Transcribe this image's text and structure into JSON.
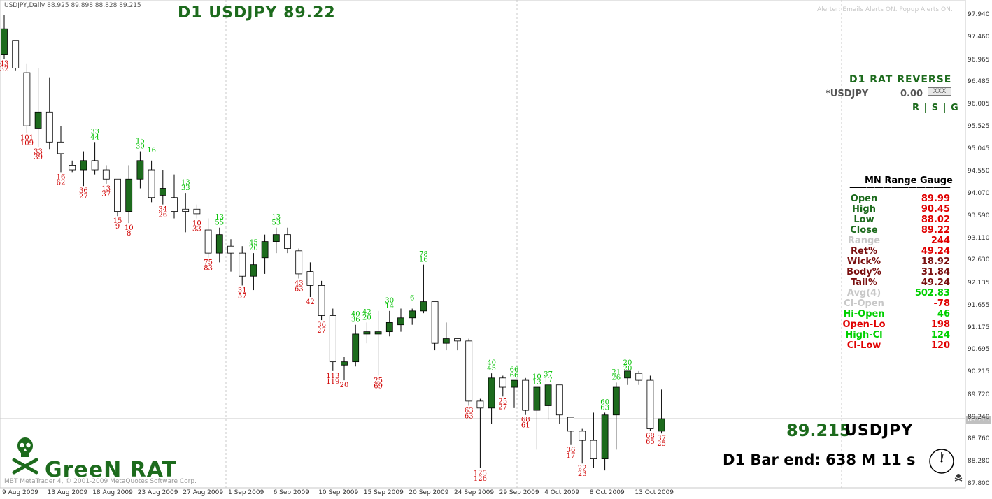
{
  "window": {
    "header": "USDJPY,Daily  88.925 89.898 88.828 89.215"
  },
  "title": "D1 USDJPY 89.22",
  "alerts_text": "Alerter:  Emails Alerts ON.  Popup Alerts ON.",
  "rat_panel": {
    "title": "D1 RAT REVERSE",
    "symbol": "*USDJPY",
    "value": "0.00",
    "box": "XXX",
    "rsg": "R | S | G"
  },
  "gauge": {
    "title": "MN Range Gauge",
    "rows": [
      {
        "label": "Open",
        "value": "89.99",
        "label_color": "#1d6b1d",
        "value_color": "#e00000"
      },
      {
        "label": "High",
        "value": "90.45",
        "label_color": "#1d6b1d",
        "value_color": "#e00000"
      },
      {
        "label": "Low",
        "value": "88.02",
        "label_color": "#1d6b1d",
        "value_color": "#e00000"
      },
      {
        "label": "Close",
        "value": "89.22",
        "label_color": "#1d6b1d",
        "value_color": "#e00000"
      },
      {
        "label": "Range",
        "value": "244",
        "label_color": "#c8c8c8",
        "value_color": "#e00000"
      },
      {
        "label": "Ret%",
        "value": "49.24",
        "label_color": "#7a1010",
        "value_color": "#e00000"
      },
      {
        "label": "Wick%",
        "value": "18.92",
        "label_color": "#7a1010",
        "value_color": "#7a1010"
      },
      {
        "label": "Body%",
        "value": "31.84",
        "label_color": "#7a1010",
        "value_color": "#7a1010"
      },
      {
        "label": "Tail%",
        "value": "49.24",
        "label_color": "#7a1010",
        "value_color": "#7a1010"
      },
      {
        "label": "Avg(4)",
        "value": "502.83",
        "label_color": "#c8c8c8",
        "value_color": "#00d000"
      },
      {
        "label": "Cl-Open",
        "value": "-78",
        "label_color": "#c8c8c8",
        "value_color": "#e00000"
      },
      {
        "label": "Hi-Open",
        "value": "46",
        "label_color": "#00d000",
        "value_color": "#00d000"
      },
      {
        "label": "Open-Lo",
        "value": "198",
        "label_color": "#e00000",
        "value_color": "#e00000"
      },
      {
        "label": "High-Cl",
        "value": "124",
        "label_color": "#00d000",
        "value_color": "#00d000"
      },
      {
        "label": "Cl-Low",
        "value": "120",
        "label_color": "#e00000",
        "value_color": "#e00000"
      }
    ]
  },
  "price_readout": "89.215",
  "symbol_readout": "USDJPY",
  "bar_end": "D1 Bar end: 638 M 11 s",
  "brand": "GreeN RAT",
  "copyright": "MBT MetaTrader 4, © 2001-2009 MetaQuotes Software Corp.",
  "current_price_tag": "89.215",
  "icons": {
    "skull": "skull-crossbones-icon",
    "clock": "clock-icon",
    "small_skull": "small-skull-icon"
  },
  "colors": {
    "bull_body": "#1d6b1d",
    "bear_body": "#ffffff",
    "wick": "#000000",
    "green_label": "#00c000",
    "red_label": "#d00000",
    "grid": "#c8c8c8"
  },
  "chart_data": {
    "type": "candlestick",
    "symbol": "USDJPY",
    "timeframe": "D1",
    "y_ticks": [
      "97.940",
      "97.460",
      "96.965",
      "96.485",
      "96.005",
      "95.525",
      "95.045",
      "94.550",
      "94.070",
      "93.590",
      "93.110",
      "92.630",
      "92.135",
      "91.655",
      "91.175",
      "90.695",
      "90.215",
      "89.720",
      "89.240",
      "88.760",
      "88.280",
      "87.800"
    ],
    "ylim": [
      87.8,
      97.94
    ],
    "x_ticks": [
      "9 Aug 2009",
      "13 Aug 2009",
      "18 Aug 2009",
      "23 Aug 2009",
      "27 Aug 2009",
      "1 Sep 2009",
      "6 Sep 2009",
      "10 Sep 2009",
      "15 Sep 2009",
      "20 Sep 2009",
      "24 Sep 2009",
      "29 Sep 2009",
      "4 Oct 2009",
      "8 Oct 2009",
      "13 Oct 2009"
    ],
    "candles": [
      {
        "o": 97.1,
        "h": 97.95,
        "l": 97.0,
        "c": 97.65
      },
      {
        "o": 97.4,
        "h": 97.4,
        "l": 96.75,
        "c": 96.8
      },
      {
        "o": 96.7,
        "h": 96.9,
        "l": 95.4,
        "c": 95.55
      },
      {
        "o": 95.5,
        "h": 96.8,
        "l": 95.1,
        "c": 95.85
      },
      {
        "o": 95.85,
        "h": 96.6,
        "l": 95.05,
        "c": 95.2
      },
      {
        "o": 95.2,
        "h": 95.55,
        "l": 94.55,
        "c": 94.95
      },
      {
        "o": 94.7,
        "h": 94.8,
        "l": 94.55,
        "c": 94.6
      },
      {
        "o": 94.6,
        "h": 95.0,
        "l": 94.25,
        "c": 94.8
      },
      {
        "o": 94.8,
        "h": 95.2,
        "l": 94.5,
        "c": 94.6
      },
      {
        "o": 94.6,
        "h": 94.7,
        "l": 94.3,
        "c": 94.4
      },
      {
        "o": 94.4,
        "h": 94.4,
        "l": 93.6,
        "c": 93.7
      },
      {
        "o": 93.7,
        "h": 94.7,
        "l": 93.45,
        "c": 94.4
      },
      {
        "o": 94.4,
        "h": 95.0,
        "l": 94.2,
        "c": 94.8
      },
      {
        "o": 94.6,
        "h": 94.8,
        "l": 93.9,
        "c": 94.0
      },
      {
        "o": 94.05,
        "h": 94.6,
        "l": 93.85,
        "c": 94.2
      },
      {
        "o": 94.0,
        "h": 94.5,
        "l": 93.55,
        "c": 93.7
      },
      {
        "o": 93.75,
        "h": 94.1,
        "l": 93.25,
        "c": 93.7
      },
      {
        "o": 93.75,
        "h": 93.85,
        "l": 93.55,
        "c": 93.65
      },
      {
        "o": 93.3,
        "h": 93.55,
        "l": 92.7,
        "c": 92.8
      },
      {
        "o": 92.8,
        "h": 93.35,
        "l": 92.6,
        "c": 93.2
      },
      {
        "o": 92.95,
        "h": 93.1,
        "l": 92.4,
        "c": 92.8
      },
      {
        "o": 92.8,
        "h": 92.95,
        "l": 92.1,
        "c": 92.3
      },
      {
        "o": 92.3,
        "h": 92.8,
        "l": 92.0,
        "c": 92.55
      },
      {
        "o": 92.7,
        "h": 93.2,
        "l": 92.35,
        "c": 93.05
      },
      {
        "o": 93.05,
        "h": 93.35,
        "l": 92.8,
        "c": 93.2
      },
      {
        "o": 93.2,
        "h": 93.35,
        "l": 92.8,
        "c": 92.9
      },
      {
        "o": 92.85,
        "h": 92.9,
        "l": 92.25,
        "c": 92.35
      },
      {
        "o": 92.4,
        "h": 92.6,
        "l": 91.85,
        "c": 92.1
      },
      {
        "o": 92.1,
        "h": 92.2,
        "l": 91.35,
        "c": 91.45
      },
      {
        "o": 91.45,
        "h": 91.6,
        "l": 90.25,
        "c": 90.45
      },
      {
        "o": 90.38,
        "h": 90.55,
        "l": 90.05,
        "c": 90.45
      },
      {
        "o": 90.45,
        "h": 91.25,
        "l": 90.35,
        "c": 91.05
      },
      {
        "o": 91.05,
        "h": 91.3,
        "l": 90.85,
        "c": 91.1
      },
      {
        "o": 91.05,
        "h": 91.55,
        "l": 90.15,
        "c": 91.1
      },
      {
        "o": 91.1,
        "h": 91.55,
        "l": 91.0,
        "c": 91.3
      },
      {
        "o": 91.25,
        "h": 91.6,
        "l": 91.1,
        "c": 91.4
      },
      {
        "o": 91.4,
        "h": 91.6,
        "l": 91.25,
        "c": 91.55
      },
      {
        "o": 91.55,
        "h": 92.55,
        "l": 91.5,
        "c": 91.75
      },
      {
        "o": 91.75,
        "h": 91.75,
        "l": 90.7,
        "c": 90.85
      },
      {
        "o": 90.85,
        "h": 91.3,
        "l": 90.7,
        "c": 90.95
      },
      {
        "o": 90.95,
        "h": 90.95,
        "l": 90.7,
        "c": 90.9
      },
      {
        "o": 90.9,
        "h": 90.95,
        "l": 89.5,
        "c": 89.6
      },
      {
        "o": 89.6,
        "h": 89.65,
        "l": 88.15,
        "c": 89.45
      },
      {
        "o": 89.45,
        "h": 90.2,
        "l": 89.1,
        "c": 90.1
      },
      {
        "o": 90.1,
        "h": 90.15,
        "l": 89.7,
        "c": 89.9
      },
      {
        "o": 89.9,
        "h": 90.05,
        "l": 89.45,
        "c": 90.05
      },
      {
        "o": 90.05,
        "h": 90.1,
        "l": 89.3,
        "c": 89.4
      },
      {
        "o": 89.4,
        "h": 89.9,
        "l": 88.55,
        "c": 89.9
      },
      {
        "o": 89.5,
        "h": 89.95,
        "l": 89.2,
        "c": 89.95
      },
      {
        "o": 89.95,
        "h": 89.95,
        "l": 89.1,
        "c": 89.3
      },
      {
        "o": 89.25,
        "h": 89.25,
        "l": 88.65,
        "c": 88.95
      },
      {
        "o": 88.95,
        "h": 89.0,
        "l": 88.25,
        "c": 88.75
      },
      {
        "o": 88.75,
        "h": 89.35,
        "l": 88.15,
        "c": 88.35
      },
      {
        "o": 88.35,
        "h": 89.35,
        "l": 88.1,
        "c": 89.3
      },
      {
        "o": 89.3,
        "h": 90.0,
        "l": 88.55,
        "c": 89.9
      },
      {
        "o": 90.1,
        "h": 90.2,
        "l": 89.95,
        "c": 90.25
      },
      {
        "o": 90.2,
        "h": 90.25,
        "l": 89.95,
        "c": 90.05
      },
      {
        "o": 90.05,
        "h": 90.15,
        "l": 88.95,
        "c": 89.0
      },
      {
        "o": 88.95,
        "h": 89.85,
        "l": 88.9,
        "c": 89.22
      }
    ],
    "labels": [
      {
        "i": 0,
        "text": "43",
        "color": "red",
        "pos": "below"
      },
      {
        "i": 0,
        "text": "32",
        "color": "red",
        "pos": "below2"
      },
      {
        "i": 2,
        "text": "101",
        "color": "red",
        "pos": "below"
      },
      {
        "i": 2,
        "text": "109",
        "color": "red",
        "pos": "below2"
      },
      {
        "i": 3,
        "text": "33",
        "color": "red",
        "pos": "below"
      },
      {
        "i": 3,
        "text": "39",
        "color": "red",
        "pos": "below2"
      },
      {
        "i": 5,
        "text": "16",
        "color": "red",
        "pos": "below"
      },
      {
        "i": 5,
        "text": "62",
        "color": "red",
        "pos": "below2"
      },
      {
        "i": 7,
        "text": "36",
        "color": "red",
        "pos": "below"
      },
      {
        "i": 7,
        "text": "27",
        "color": "red",
        "pos": "below2"
      },
      {
        "i": 8,
        "text": "33",
        "color": "green",
        "pos": "above"
      },
      {
        "i": 8,
        "text": "44",
        "color": "green",
        "pos": "above2"
      },
      {
        "i": 9,
        "text": "13",
        "color": "red",
        "pos": "below"
      },
      {
        "i": 9,
        "text": "37",
        "color": "red",
        "pos": "below2"
      },
      {
        "i": 10,
        "text": "15",
        "color": "red",
        "pos": "below"
      },
      {
        "i": 10,
        "text": "9",
        "color": "red",
        "pos": "below2"
      },
      {
        "i": 11,
        "text": "10",
        "color": "red",
        "pos": "below"
      },
      {
        "i": 11,
        "text": "8",
        "color": "red",
        "pos": "below2"
      },
      {
        "i": 12,
        "text": "15",
        "color": "green",
        "pos": "above"
      },
      {
        "i": 12,
        "text": "30",
        "color": "green",
        "pos": "above2"
      },
      {
        "i": 13,
        "text": "16",
        "color": "green",
        "pos": "above"
      },
      {
        "i": 14,
        "text": "34",
        "color": "red",
        "pos": "below"
      },
      {
        "i": 14,
        "text": "26",
        "color": "red",
        "pos": "below2"
      },
      {
        "i": 16,
        "text": "13",
        "color": "green",
        "pos": "above"
      },
      {
        "i": 16,
        "text": "33",
        "color": "green",
        "pos": "above2"
      },
      {
        "i": 17,
        "text": "10",
        "color": "red",
        "pos": "below"
      },
      {
        "i": 17,
        "text": "33",
        "color": "red",
        "pos": "below2"
      },
      {
        "i": 18,
        "text": "75",
        "color": "red",
        "pos": "below"
      },
      {
        "i": 18,
        "text": "83",
        "color": "red",
        "pos": "below2"
      },
      {
        "i": 19,
        "text": "13",
        "color": "green",
        "pos": "above"
      },
      {
        "i": 19,
        "text": "55",
        "color": "green",
        "pos": "above2"
      },
      {
        "i": 21,
        "text": "31",
        "color": "red",
        "pos": "below"
      },
      {
        "i": 21,
        "text": "57",
        "color": "red",
        "pos": "below2"
      },
      {
        "i": 22,
        "text": "45",
        "color": "green",
        "pos": "above"
      },
      {
        "i": 22,
        "text": "20",
        "color": "green",
        "pos": "above2"
      },
      {
        "i": 24,
        "text": "13",
        "color": "green",
        "pos": "above"
      },
      {
        "i": 24,
        "text": "53",
        "color": "green",
        "pos": "above2"
      },
      {
        "i": 26,
        "text": "43",
        "color": "red",
        "pos": "below"
      },
      {
        "i": 26,
        "text": "63",
        "color": "red",
        "pos": "below2"
      },
      {
        "i": 27,
        "text": "42",
        "color": "red",
        "pos": "below"
      },
      {
        "i": 28,
        "text": "36",
        "color": "red",
        "pos": "below"
      },
      {
        "i": 28,
        "text": "27",
        "color": "red",
        "pos": "below2"
      },
      {
        "i": 29,
        "text": "113",
        "color": "red",
        "pos": "below"
      },
      {
        "i": 29,
        "text": "119",
        "color": "red",
        "pos": "below2"
      },
      {
        "i": 30,
        "text": "20",
        "color": "red",
        "pos": "below"
      },
      {
        "i": 31,
        "text": "40",
        "color": "green",
        "pos": "above"
      },
      {
        "i": 31,
        "text": "36",
        "color": "green",
        "pos": "above2"
      },
      {
        "i": 32,
        "text": "42",
        "color": "green",
        "pos": "above"
      },
      {
        "i": 32,
        "text": "20",
        "color": "green",
        "pos": "above2"
      },
      {
        "i": 33,
        "text": "25",
        "color": "red",
        "pos": "below"
      },
      {
        "i": 33,
        "text": "69",
        "color": "red",
        "pos": "below2"
      },
      {
        "i": 34,
        "text": "30",
        "color": "green",
        "pos": "above"
      },
      {
        "i": 34,
        "text": "14",
        "color": "green",
        "pos": "above2"
      },
      {
        "i": 36,
        "text": "6",
        "color": "green",
        "pos": "above"
      },
      {
        "i": 37,
        "text": "78",
        "color": "green",
        "pos": "above"
      },
      {
        "i": 37,
        "text": "16",
        "color": "green",
        "pos": "above2"
      },
      {
        "i": 41,
        "text": "63",
        "color": "red",
        "pos": "below"
      },
      {
        "i": 41,
        "text": "63",
        "color": "red",
        "pos": "below2"
      },
      {
        "i": 42,
        "text": "125",
        "color": "red",
        "pos": "below"
      },
      {
        "i": 42,
        "text": "126",
        "color": "red",
        "pos": "below2"
      },
      {
        "i": 43,
        "text": "40",
        "color": "green",
        "pos": "above"
      },
      {
        "i": 43,
        "text": "45",
        "color": "green",
        "pos": "above2"
      },
      {
        "i": 44,
        "text": "25",
        "color": "red",
        "pos": "below"
      },
      {
        "i": 44,
        "text": "27",
        "color": "red",
        "pos": "below2"
      },
      {
        "i": 45,
        "text": "66",
        "color": "green",
        "pos": "above"
      },
      {
        "i": 45,
        "text": "66",
        "color": "green",
        "pos": "above2"
      },
      {
        "i": 46,
        "text": "68",
        "color": "red",
        "pos": "below"
      },
      {
        "i": 46,
        "text": "61",
        "color": "red",
        "pos": "below2"
      },
      {
        "i": 47,
        "text": "10",
        "color": "green",
        "pos": "above"
      },
      {
        "i": 47,
        "text": "13",
        "color": "green",
        "pos": "above2"
      },
      {
        "i": 48,
        "text": "37",
        "color": "green",
        "pos": "above"
      },
      {
        "i": 48,
        "text": "17",
        "color": "green",
        "pos": "above2"
      },
      {
        "i": 50,
        "text": "36",
        "color": "red",
        "pos": "below"
      },
      {
        "i": 50,
        "text": "17",
        "color": "red",
        "pos": "below2"
      },
      {
        "i": 51,
        "text": "22",
        "color": "red",
        "pos": "below"
      },
      {
        "i": 51,
        "text": "23",
        "color": "red",
        "pos": "below2"
      },
      {
        "i": 53,
        "text": "60",
        "color": "green",
        "pos": "above"
      },
      {
        "i": 53,
        "text": "63",
        "color": "green",
        "pos": "above2"
      },
      {
        "i": 54,
        "text": "21",
        "color": "green",
        "pos": "above"
      },
      {
        "i": 54,
        "text": "26",
        "color": "green",
        "pos": "above2"
      },
      {
        "i": 55,
        "text": "20",
        "color": "green",
        "pos": "above"
      },
      {
        "i": 55,
        "text": "20",
        "color": "green",
        "pos": "above2"
      },
      {
        "i": 57,
        "text": "68",
        "color": "red",
        "pos": "below"
      },
      {
        "i": 57,
        "text": "65",
        "color": "red",
        "pos": "below2"
      },
      {
        "i": 58,
        "text": "37",
        "color": "red",
        "pos": "below"
      },
      {
        "i": 58,
        "text": "25",
        "color": "red",
        "pos": "below2"
      }
    ]
  }
}
